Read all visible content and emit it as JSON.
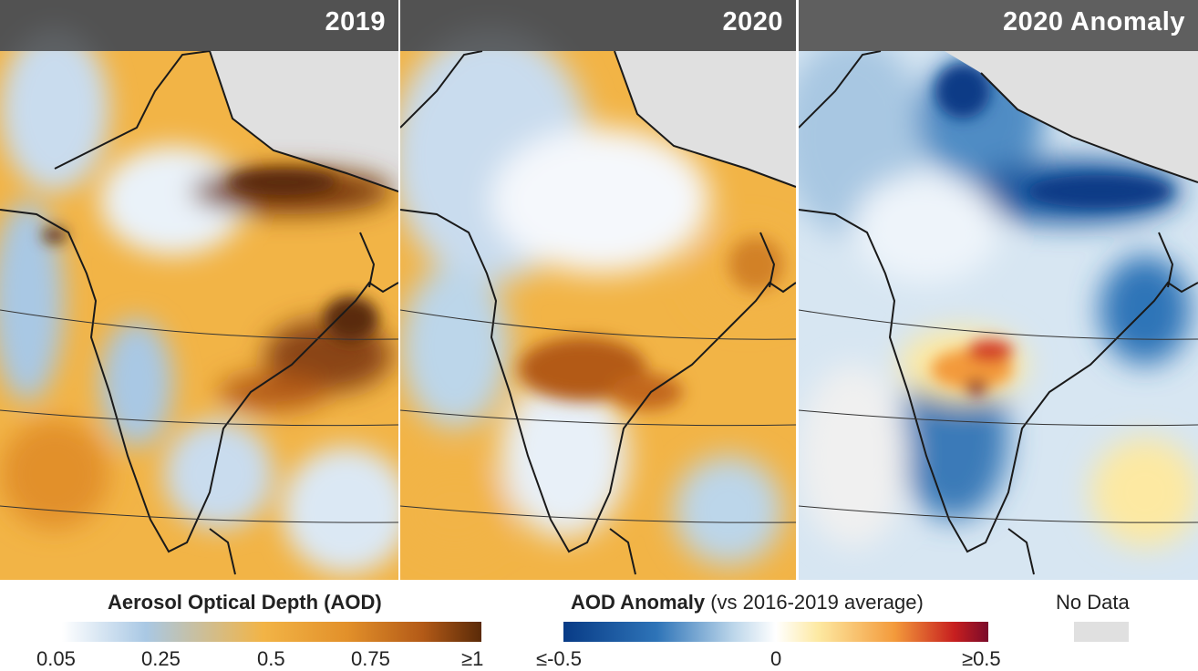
{
  "panels": [
    {
      "title": "2019"
    },
    {
      "title": "2020"
    },
    {
      "title": "2020 Anomaly"
    }
  ],
  "legend_aod": {
    "title": "Aerosol Optical Depth (AOD)",
    "ticks": [
      "0.05",
      "0.25",
      "0.5",
      "0.75",
      "≥1"
    ]
  },
  "legend_anomaly": {
    "title_bold": "AOD Anomaly",
    "title_rest": "(vs 2016-2019 average)",
    "ticks": [
      "≤-0.5",
      "0",
      "≥0.5"
    ]
  },
  "legend_nodata": {
    "label": "No Data"
  },
  "colors": {
    "aod_scale": [
      "#ffffff",
      "#a9c8e4",
      "#f2b446",
      "#e2902a",
      "#b35a17",
      "#5a2a08"
    ],
    "anomaly_scale": [
      "#083b86",
      "#2e74b8",
      "#bcd6ea",
      "#ffffff",
      "#fde9a2",
      "#f39a3b",
      "#c71f1f",
      "#7a0a2a"
    ],
    "no_data": "#e0e0e0",
    "border": "#1a1a1a"
  }
}
